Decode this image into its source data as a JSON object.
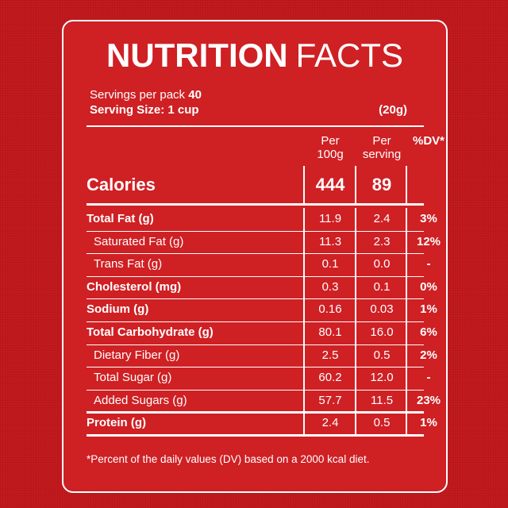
{
  "title": {
    "bold": "NUTRITION",
    "regular": "FACTS"
  },
  "servings": {
    "label": "Servings per pack",
    "count": "40"
  },
  "serving_size": {
    "label": "Serving Size: 1 cup",
    "grams": "(20g)"
  },
  "headers": {
    "per100_line1": "Per",
    "per100_line2": "100g",
    "serv_line1": "Per",
    "serv_line2": "serving",
    "dv": "%DV*"
  },
  "calories": {
    "label": "Calories",
    "per100": "444",
    "serving": "89"
  },
  "rows": [
    {
      "label": "Total Fat (g)",
      "per100": "11.9",
      "serving": "2.4",
      "dv": "3%"
    },
    {
      "label": "Saturated Fat (g)",
      "per100": "11.3",
      "serving": "2.3",
      "dv": "12%"
    },
    {
      "label": "Trans Fat (g)",
      "per100": "0.1",
      "serving": "0.0",
      "dv": "-"
    },
    {
      "label": "Cholesterol (mg)",
      "per100": "0.3",
      "serving": "0.1",
      "dv": "0%"
    },
    {
      "label": "Sodium (g)",
      "per100": "0.16",
      "serving": "0.03",
      "dv": "1%"
    },
    {
      "label": "Total Carbohydrate (g)",
      "per100": "80.1",
      "serving": "16.0",
      "dv": "6%"
    },
    {
      "label": "Dietary Fiber (g)",
      "per100": "2.5",
      "serving": "0.5",
      "dv": "2%"
    },
    {
      "label": "Total Sugar (g)",
      "per100": "60.2",
      "serving": "12.0",
      "dv": "-"
    },
    {
      "label": "Added Sugars (g)",
      "per100": "57.7",
      "serving": "11.5",
      "dv": "23%"
    },
    {
      "label": "Protein (g)",
      "per100": "2.4",
      "serving": "0.5",
      "dv": "1%"
    }
  ],
  "footnote": "*Percent of the daily values (DV) based on a 2000 kcal diet.",
  "colors": {
    "background": "#c41a1e",
    "panel": "#cf2024",
    "text": "#ffffff"
  }
}
